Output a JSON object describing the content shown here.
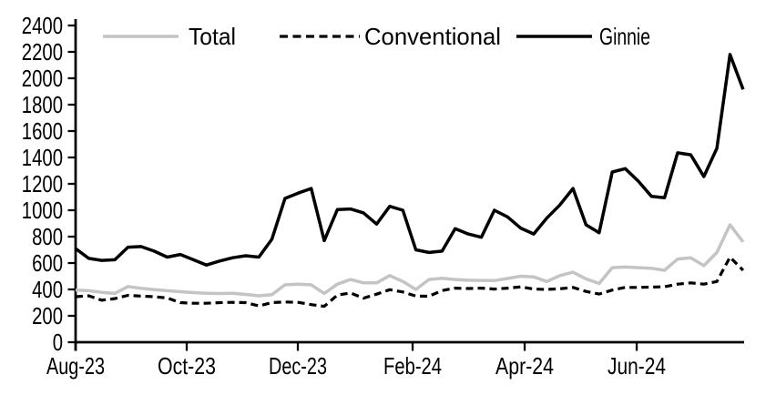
{
  "chart_data": {
    "type": "line",
    "title": "",
    "xlabel": "",
    "ylabel": "",
    "x_unit": "weekly observations, Aug 2023 - Aug 2024",
    "ylim": [
      0,
      2400
    ],
    "y_ticks": [
      0,
      200,
      400,
      600,
      800,
      1000,
      1200,
      1400,
      1600,
      1800,
      2000,
      2200,
      2400
    ],
    "x_ticks": [
      {
        "label": "Aug-23",
        "week": 0
      },
      {
        "label": "Oct-23",
        "week": 8.49
      },
      {
        "label": "Dec-23",
        "week": 16.98
      },
      {
        "label": "Feb-24",
        "week": 25.75
      },
      {
        "label": "Apr-24",
        "week": 34.31
      },
      {
        "label": "Jun-24",
        "week": 42.87
      }
    ],
    "legend_position": "top",
    "grid": false,
    "axis_color": "#000000",
    "background_color": "#ffffff",
    "series": [
      {
        "name": "Total",
        "color": "#c4c4c4",
        "style": "solid",
        "values": [
          395,
          390,
          378,
          370,
          422,
          408,
          398,
          390,
          383,
          376,
          371,
          369,
          371,
          362,
          352,
          360,
          435,
          440,
          435,
          370,
          440,
          475,
          450,
          450,
          505,
          460,
          400,
          475,
          485,
          475,
          470,
          468,
          467,
          483,
          500,
          495,
          460,
          505,
          530,
          480,
          445,
          565,
          570,
          565,
          560,
          545,
          630,
          640,
          580,
          680,
          890,
          760
        ]
      },
      {
        "name": "Conventional",
        "color": "#000000",
        "style": "dashed",
        "values": [
          345,
          352,
          318,
          330,
          355,
          350,
          345,
          335,
          300,
          295,
          295,
          300,
          302,
          300,
          275,
          300,
          305,
          302,
          285,
          272,
          357,
          373,
          334,
          364,
          398,
          381,
          350,
          348,
          392,
          410,
          407,
          410,
          403,
          410,
          419,
          403,
          400,
          405,
          415,
          385,
          365,
          395,
          415,
          415,
          418,
          420,
          440,
          450,
          440,
          460,
          645,
          545
        ]
      },
      {
        "name": "Ginnie",
        "color": "#000000",
        "style": "solid",
        "values": [
          710,
          635,
          620,
          625,
          720,
          725,
          690,
          645,
          665,
          625,
          585,
          615,
          640,
          655,
          645,
          780,
          1090,
          1130,
          1165,
          770,
          1005,
          1010,
          980,
          895,
          1030,
          1000,
          700,
          680,
          690,
          860,
          820,
          795,
          1000,
          950,
          865,
          820,
          940,
          1040,
          1165,
          890,
          830,
          1290,
          1315,
          1220,
          1105,
          1095,
          1435,
          1420,
          1255,
          1470,
          2180,
          1915
        ]
      }
    ]
  }
}
